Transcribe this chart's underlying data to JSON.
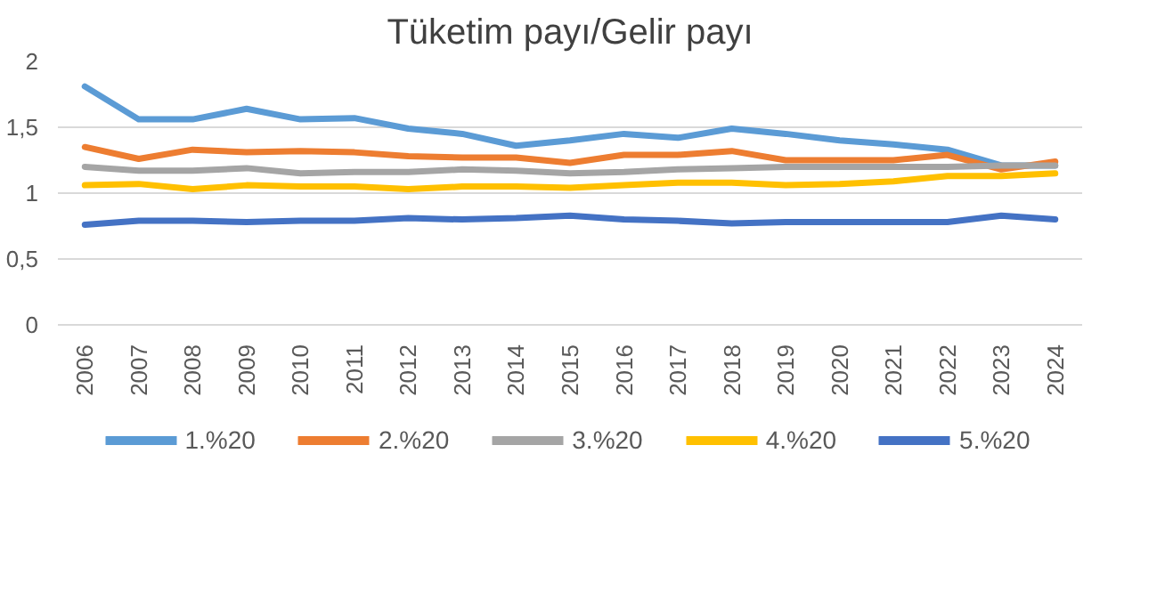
{
  "chart_data": {
    "type": "line",
    "title": "Tüketim payı/Gelir payı",
    "categories": [
      "2006",
      "2007",
      "2008",
      "2009",
      "2010",
      "2011",
      "2012",
      "2013",
      "2014",
      "2015",
      "2016",
      "2017",
      "2018",
      "2019",
      "2020",
      "2021",
      "2022",
      "2023",
      "2024"
    ],
    "series": [
      {
        "name": "1.%20",
        "color": "#5b9bd5",
        "values": [
          1.81,
          1.56,
          1.56,
          1.64,
          1.56,
          1.57,
          1.49,
          1.45,
          1.36,
          1.4,
          1.45,
          1.42,
          1.49,
          1.45,
          1.4,
          1.37,
          1.33,
          1.21,
          1.21
        ]
      },
      {
        "name": "2.%20",
        "color": "#ed7d31",
        "values": [
          1.35,
          1.26,
          1.33,
          1.31,
          1.32,
          1.31,
          1.28,
          1.27,
          1.27,
          1.23,
          1.29,
          1.29,
          1.32,
          1.25,
          1.25,
          1.25,
          1.29,
          1.18,
          1.24
        ]
      },
      {
        "name": "3.%20",
        "color": "#a5a5a5",
        "values": [
          1.2,
          1.17,
          1.17,
          1.19,
          1.15,
          1.16,
          1.16,
          1.18,
          1.17,
          1.15,
          1.16,
          1.18,
          1.19,
          1.2,
          1.2,
          1.2,
          1.2,
          1.21,
          1.21
        ]
      },
      {
        "name": "4.%20",
        "color": "#ffc000",
        "values": [
          1.06,
          1.07,
          1.03,
          1.06,
          1.05,
          1.05,
          1.03,
          1.05,
          1.05,
          1.04,
          1.06,
          1.08,
          1.08,
          1.06,
          1.07,
          1.09,
          1.13,
          1.13,
          1.15
        ]
      },
      {
        "name": "5.%20",
        "color": "#4472c4",
        "values": [
          0.76,
          0.79,
          0.79,
          0.78,
          0.79,
          0.79,
          0.81,
          0.8,
          0.81,
          0.83,
          0.8,
          0.79,
          0.77,
          0.78,
          0.78,
          0.78,
          0.78,
          0.83,
          0.8
        ]
      }
    ],
    "ylim": [
      0,
      2
    ],
    "yticks": [
      0,
      {
        "value": 0.5,
        "label": "0,5"
      },
      1,
      {
        "value": 1.5,
        "label": "1,5"
      },
      2
    ],
    "grid": "y",
    "legend": "bottom",
    "marker": "none",
    "line_style": "solid"
  }
}
